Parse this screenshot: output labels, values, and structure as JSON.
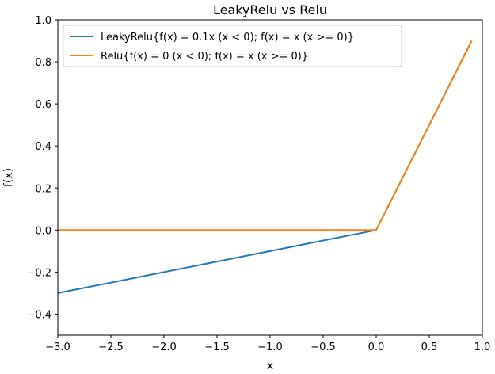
{
  "chart_data": {
    "type": "line",
    "title": "LeakyRelu vs Relu",
    "xlabel": "x",
    "ylabel": "f(x)",
    "xlim": [
      -3.0,
      1.0
    ],
    "ylim": [
      -0.5,
      1.0
    ],
    "xticks": [
      -3.0,
      -2.5,
      -2.0,
      -1.5,
      -1.0,
      -0.5,
      0.0,
      0.5,
      1.0
    ],
    "xtick_labels": [
      "−3.0",
      "−2.5",
      "−2.0",
      "−1.5",
      "−1.0",
      "−0.5",
      "0.0",
      "0.5",
      "1.0"
    ],
    "yticks": [
      -0.4,
      -0.2,
      0.0,
      0.2,
      0.4,
      0.6,
      0.8,
      1.0
    ],
    "ytick_labels": [
      "−0.4",
      "−0.2",
      "0.0",
      "0.2",
      "0.4",
      "0.6",
      "0.8",
      "1.0"
    ],
    "grid": false,
    "legend_position": "top-left",
    "series": [
      {
        "name": "LeakyRelu{f(x) = 0.1x (x < 0); f(x) = x (x >= 0)}",
        "color": "#1f77b4",
        "x": [
          -3.0,
          0.0,
          0.9
        ],
        "y": [
          -0.3,
          0.0,
          0.9
        ]
      },
      {
        "name": "Relu{f(x) = 0 (x < 0); f(x) = x (x >= 0)}",
        "color": "#ff7f0e",
        "x": [
          -3.0,
          0.0,
          0.9
        ],
        "y": [
          0.0,
          0.0,
          0.9
        ]
      }
    ]
  }
}
